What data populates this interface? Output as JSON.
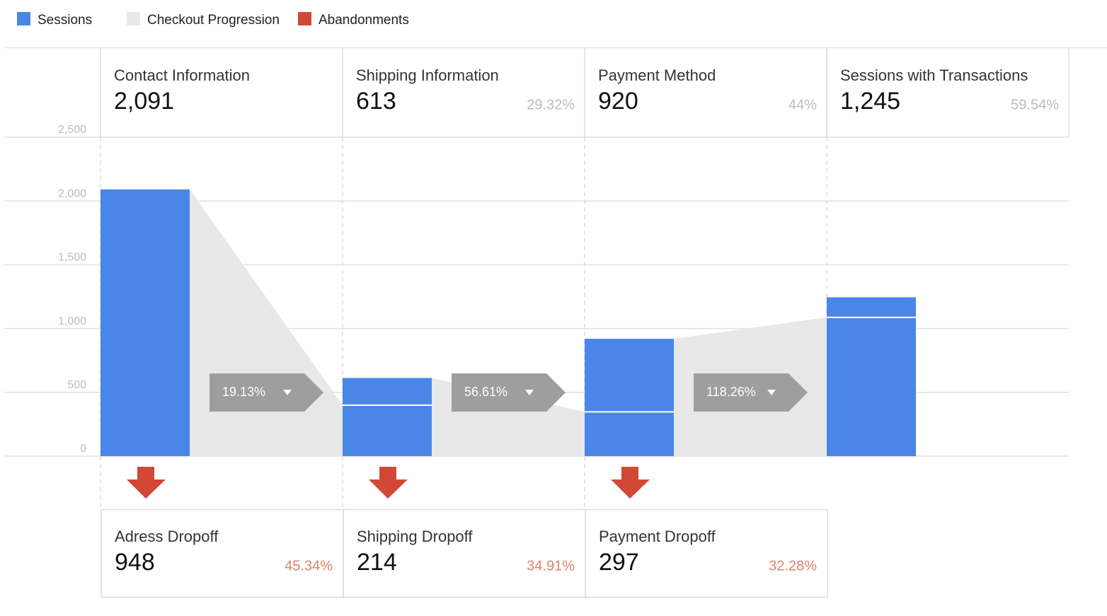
{
  "chart_data": {
    "type": "funnel",
    "legend": [
      {
        "name": "Sessions",
        "color": "#4a86e8"
      },
      {
        "name": "Checkout Progression",
        "color": "#e8e8e8"
      },
      {
        "name": "Abandonments",
        "color": "#d14836"
      }
    ],
    "categories": [
      "Contact Information",
      "Shipping Information",
      "Payment Method",
      "Sessions with Transactions"
    ],
    "values": [
      2091,
      613,
      920,
      1245
    ],
    "value_labels": [
      "2,091",
      "613",
      "920",
      "1,245"
    ],
    "step_rates": {
      "values": [
        29.32,
        44,
        59.54
      ],
      "value_labels": [
        "29.32%",
        "44%",
        "59.54%"
      ]
    },
    "progression": {
      "values": [
        400,
        347,
        1088
      ]
    },
    "progression_rates": {
      "values": [
        19.13,
        56.61,
        118.26
      ],
      "value_labels": [
        "19.13%",
        "56.61%",
        "118.26%"
      ]
    },
    "dropoffs": {
      "names": [
        "Adress Dropoff",
        "Shipping Dropoff",
        "Payment Dropoff"
      ],
      "values": [
        948,
        214,
        297
      ],
      "rates": [
        45.34,
        34.91,
        32.28
      ],
      "rate_labels": [
        "45.34%",
        "34.91%",
        "32.28%"
      ]
    },
    "ylim": [
      0,
      2500
    ],
    "yticks": [
      0,
      500,
      {
        "value": 1000,
        "label": "1,000"
      },
      {
        "value": 1500,
        "label": "1,500"
      },
      {
        "value": 2000,
        "label": "2,000"
      },
      {
        "value": 2500,
        "label": "2,500"
      }
    ],
    "grid": true
  }
}
